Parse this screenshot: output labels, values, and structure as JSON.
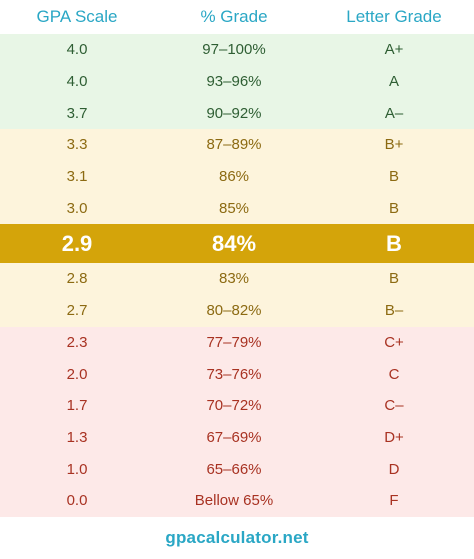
{
  "header": {
    "col1": "GPA Scale",
    "col2": "% Grade",
    "col3": "Letter Grade"
  },
  "rows": [
    {
      "gpa": "4.0",
      "pct": "97–100%",
      "letter": "A+",
      "group": "a"
    },
    {
      "gpa": "4.0",
      "pct": "93–96%",
      "letter": "A",
      "group": "a"
    },
    {
      "gpa": "3.7",
      "pct": "90–92%",
      "letter": "A–",
      "group": "a"
    },
    {
      "gpa": "3.3",
      "pct": "87–89%",
      "letter": "B+",
      "group": "b"
    },
    {
      "gpa": "3.1",
      "pct": "86%",
      "letter": "B",
      "group": "b"
    },
    {
      "gpa": "3.0",
      "pct": "85%",
      "letter": "B",
      "group": "b"
    },
    {
      "gpa": "2.9",
      "pct": "84%",
      "letter": "B",
      "group": "highlight"
    },
    {
      "gpa": "2.8",
      "pct": "83%",
      "letter": "B",
      "group": "b"
    },
    {
      "gpa": "2.7",
      "pct": "80–82%",
      "letter": "B–",
      "group": "b"
    },
    {
      "gpa": "2.3",
      "pct": "77–79%",
      "letter": "C+",
      "group": "c"
    },
    {
      "gpa": "2.0",
      "pct": "73–76%",
      "letter": "C",
      "group": "c"
    },
    {
      "gpa": "1.7",
      "pct": "70–72%",
      "letter": "C–",
      "group": "c"
    },
    {
      "gpa": "1.3",
      "pct": "67–69%",
      "letter": "D+",
      "group": "c"
    },
    {
      "gpa": "1.0",
      "pct": "65–66%",
      "letter": "D",
      "group": "c"
    },
    {
      "gpa": "0.0",
      "pct": "Bellow 65%",
      "letter": "F",
      "group": "c"
    }
  ],
  "footer": {
    "site": "gpacalculator.net"
  },
  "colors": {
    "header_text": "#2aa7c5",
    "group_a_bg": "#e8f6e6",
    "group_b_bg": "#fdf4dc",
    "group_c_bg": "#fde9e8",
    "highlight_bg": "#d4a40a"
  }
}
